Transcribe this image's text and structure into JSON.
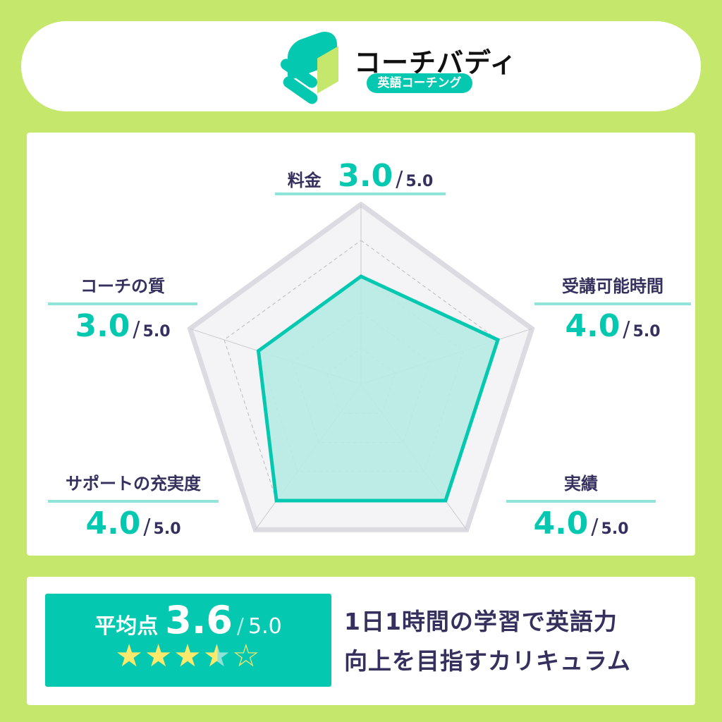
{
  "header": {
    "brand": "コーチバディ",
    "tagline": "英語コーチング"
  },
  "colors": {
    "background": "#c5e86c",
    "accent": "#05c8b0",
    "fill": "#b7ebe4",
    "text": "#35305e",
    "star": "#fbe96b"
  },
  "max_label": "5.0",
  "chart_data": {
    "type": "radar",
    "categories": [
      "料金",
      "受講可能時間",
      "実績",
      "サポートの充実度",
      "コーチの質"
    ],
    "values": [
      3.0,
      4.0,
      4.0,
      4.0,
      3.0
    ],
    "value_labels": [
      "3.0",
      "4.0",
      "4.0",
      "4.0",
      "3.0"
    ],
    "range": [
      0,
      5
    ],
    "grid": true
  },
  "summary": {
    "label": "平均点",
    "score": "3.6",
    "max": "5.0",
    "rating": 3.6,
    "stars": "★★★",
    "half_star": "★",
    "empty_star": "☆",
    "description_line1": "1日1時間の学習で英語力",
    "description_line2": "向上を目指すカリキュラム"
  }
}
